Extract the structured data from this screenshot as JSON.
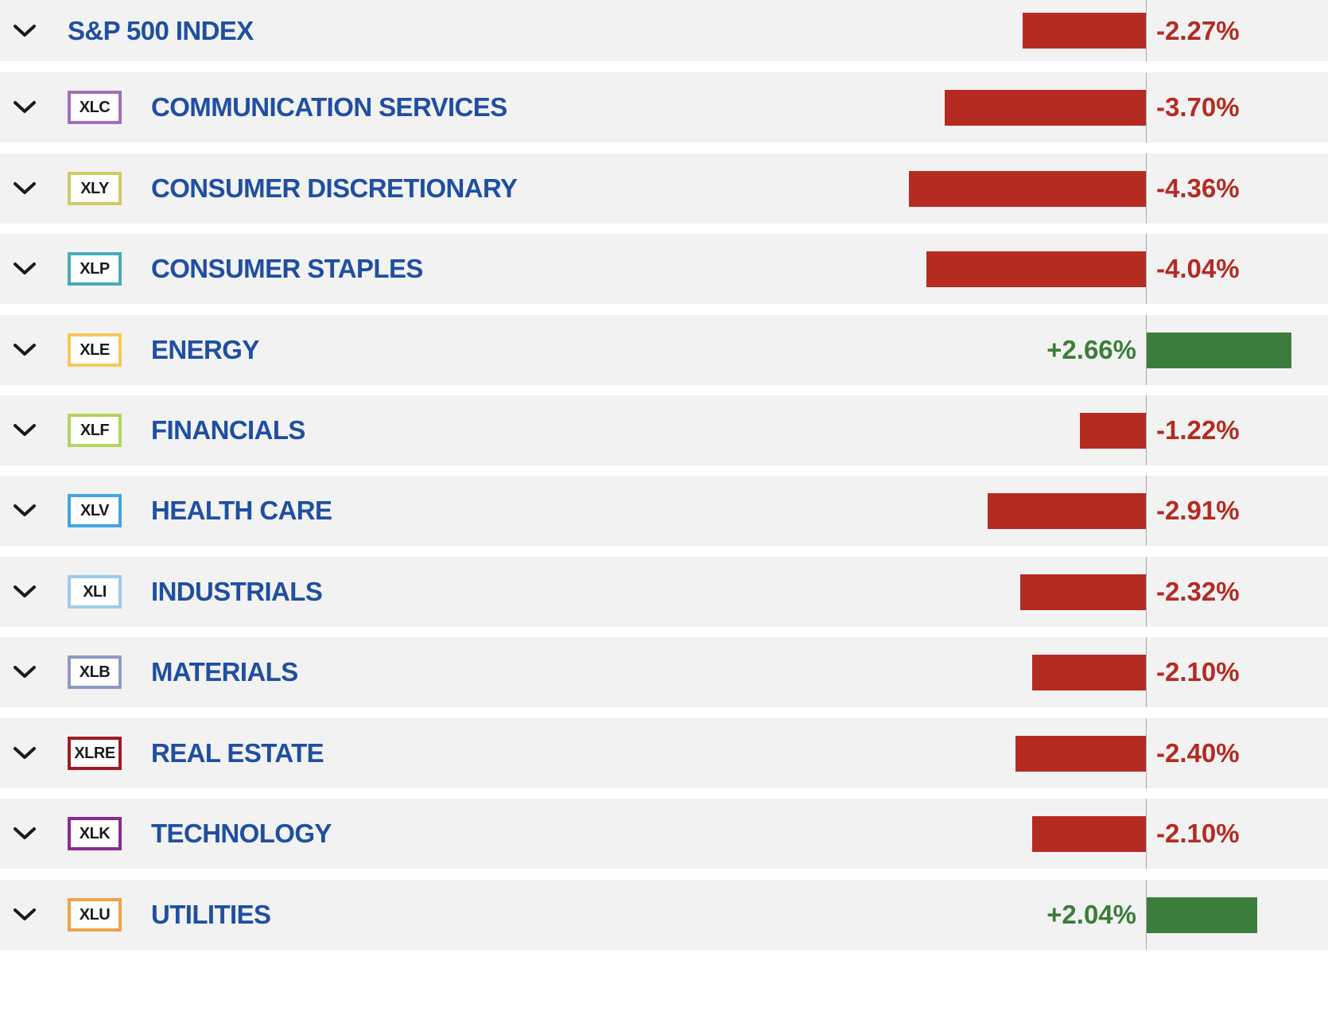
{
  "colors": {
    "row_background": "#f2f2f2",
    "name_text": "#1f4fa0",
    "negative": "#b52b22",
    "positive": "#3b7d3a",
    "axis_line": "#a9a9a9"
  },
  "rows": [
    {
      "name": "S&P 500 INDEX",
      "ticker": "",
      "badge_color": "",
      "change_pct": -2.27,
      "change_label": "-2.27%"
    },
    {
      "name": "COMMUNICATION SERVICES",
      "ticker": "XLC",
      "badge_color": "#a070b8",
      "change_pct": -3.7,
      "change_label": "-3.70%"
    },
    {
      "name": "CONSUMER DISCRETIONARY",
      "ticker": "XLY",
      "badge_color": "#cccc66",
      "change_pct": -4.36,
      "change_label": "-4.36%"
    },
    {
      "name": "CONSUMER STAPLES",
      "ticker": "XLP",
      "badge_color": "#4aaab9",
      "change_pct": -4.04,
      "change_label": "-4.04%"
    },
    {
      "name": "ENERGY",
      "ticker": "XLE",
      "badge_color": "#f5c955",
      "change_pct": 2.66,
      "change_label": "+2.66%"
    },
    {
      "name": "FINANCIALS",
      "ticker": "XLF",
      "badge_color": "#b3d460",
      "change_pct": -1.22,
      "change_label": "-1.22%"
    },
    {
      "name": "HEALTH CARE",
      "ticker": "XLV",
      "badge_color": "#3fa6e6",
      "change_pct": -2.91,
      "change_label": "-2.91%"
    },
    {
      "name": "INDUSTRIALS",
      "ticker": "XLI",
      "badge_color": "#9fcbea",
      "change_pct": -2.32,
      "change_label": "-2.32%"
    },
    {
      "name": "MATERIALS",
      "ticker": "XLB",
      "badge_color": "#8e9bc6",
      "change_pct": -2.1,
      "change_label": "-2.10%"
    },
    {
      "name": "REAL ESTATE",
      "ticker": "XLRE",
      "badge_color": "#9e1b23",
      "change_pct": -2.4,
      "change_label": "-2.40%"
    },
    {
      "name": "TECHNOLOGY",
      "ticker": "XLK",
      "badge_color": "#8a2b8f",
      "change_pct": -2.1,
      "change_label": "-2.10%"
    },
    {
      "name": "UTILITIES",
      "ticker": "XLU",
      "badge_color": "#f0a248",
      "change_pct": 2.04,
      "change_label": "+2.04%"
    }
  ],
  "icons": {
    "expand": "chevron-down-icon"
  }
}
